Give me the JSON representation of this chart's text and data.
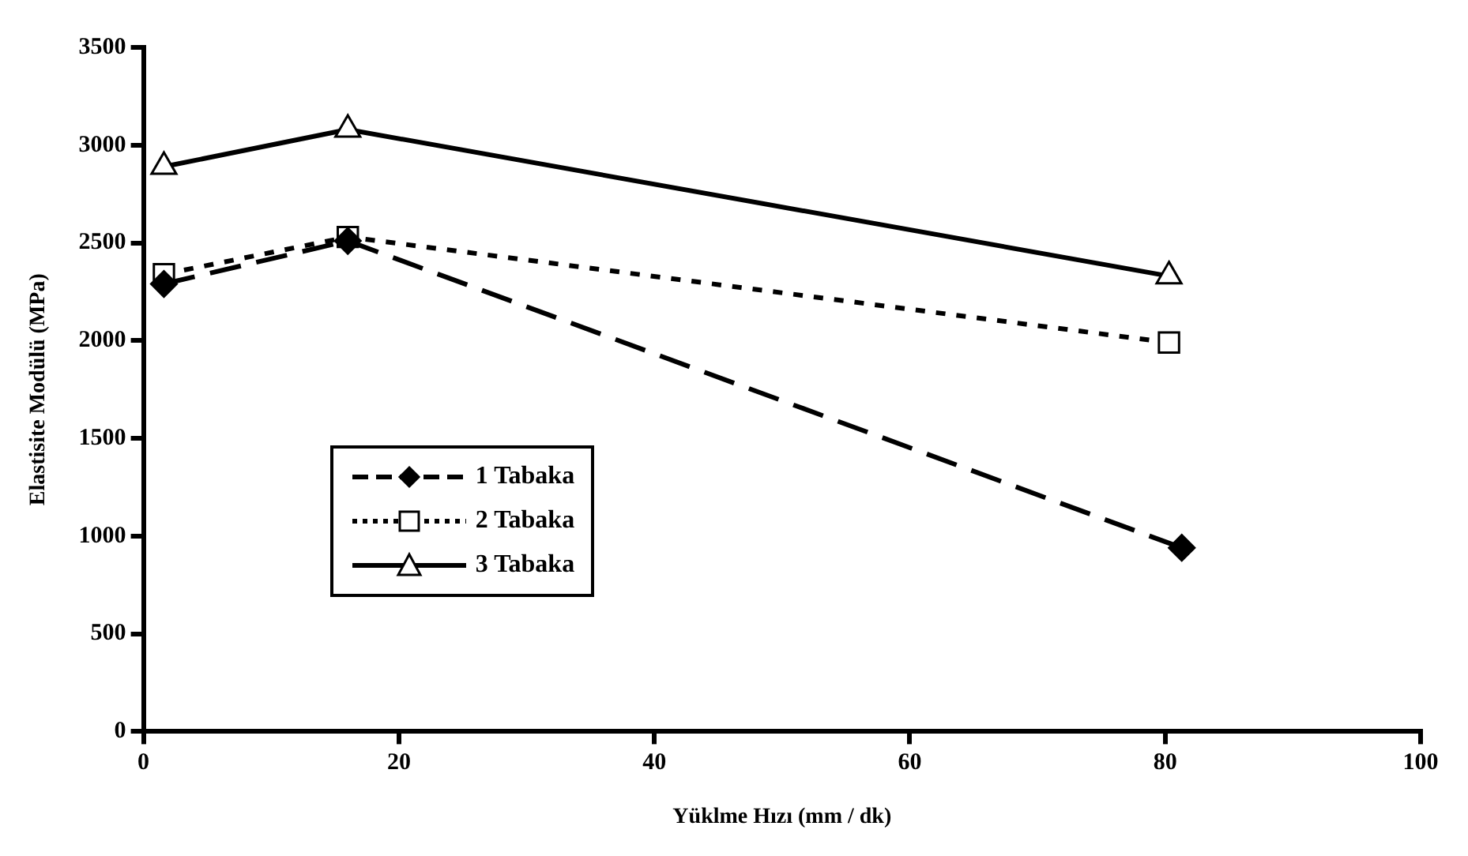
{
  "chart_data": {
    "type": "line",
    "xlabel": "Yüklme Hızı (mm / dk)",
    "ylabel": "Elastisite Modülü (MPa)",
    "xlim": [
      0,
      100
    ],
    "xticks": [
      0,
      20,
      40,
      60,
      80,
      100
    ],
    "ylim": [
      0,
      3500
    ],
    "yticks": [
      0,
      500,
      1000,
      1500,
      2000,
      2500,
      3000,
      3500
    ],
    "grid": false,
    "legend": "center left",
    "series": [
      {
        "name": "1 Tabaka",
        "color": "#000000",
        "marker": "diamond",
        "line_style": "dashed",
        "x": [
          1.6,
          16,
          81.3
        ],
        "values": [
          2290,
          2510,
          940
        ]
      },
      {
        "name": "2 Tabaka",
        "color": "#000000",
        "marker": "square",
        "line_style": "dotted",
        "x": [
          1.6,
          16,
          80.3
        ],
        "values": [
          2340,
          2530,
          1990
        ]
      },
      {
        "name": "3 Tabaka",
        "color": "#000000",
        "marker": "triangle",
        "line_style": "solid",
        "x": [
          1.6,
          16,
          80.3
        ],
        "values": [
          2890,
          3080,
          2330
        ]
      }
    ]
  }
}
